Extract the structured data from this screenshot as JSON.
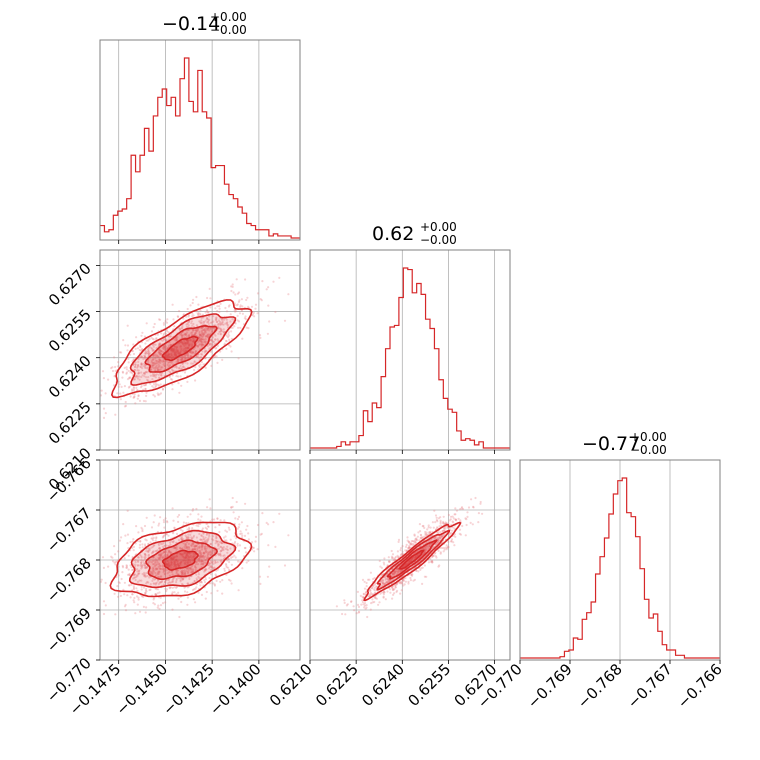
{
  "chart_data": {
    "type": "corner",
    "color": "#d62728",
    "parameters": [
      {
        "title_value": "−0.14",
        "title_plus": "+0.00",
        "title_minus": "−0.00",
        "median": -0.1442,
        "sigma": 0.0018,
        "range": [
          -0.1485,
          -0.1378
        ],
        "ticks": [
          -0.1475,
          -0.145,
          -0.1425,
          -0.14
        ],
        "tick_labels": [
          "−0.1475",
          "−0.1450",
          "−0.1425",
          "−0.1400"
        ]
      },
      {
        "title_value": "0.62",
        "title_plus": "+0.00",
        "title_minus": "−0.00",
        "median": 0.6243,
        "sigma": 0.00075,
        "range": [
          0.621,
          0.6275
        ],
        "ticks": [
          0.621,
          0.6225,
          0.624,
          0.6255,
          0.627
        ],
        "tick_labels": [
          "0.6210",
          "0.6225",
          "0.6240",
          "0.6255",
          "0.6270"
        ]
      },
      {
        "title_value": "−0.77",
        "title_plus": "+0.00",
        "title_minus": "−0.00",
        "median": -0.768,
        "sigma": 0.00037,
        "range": [
          -0.77,
          -0.766
        ],
        "ticks": [
          -0.77,
          -0.769,
          -0.768,
          -0.767,
          -0.766
        ],
        "tick_labels": [
          "−0.770",
          "−0.769",
          "−0.768",
          "−0.767",
          "−0.766"
        ]
      }
    ],
    "correlations": {
      "0-1": 0.75,
      "0-2": 0.4,
      "1-2": 0.95
    },
    "grid": true
  }
}
